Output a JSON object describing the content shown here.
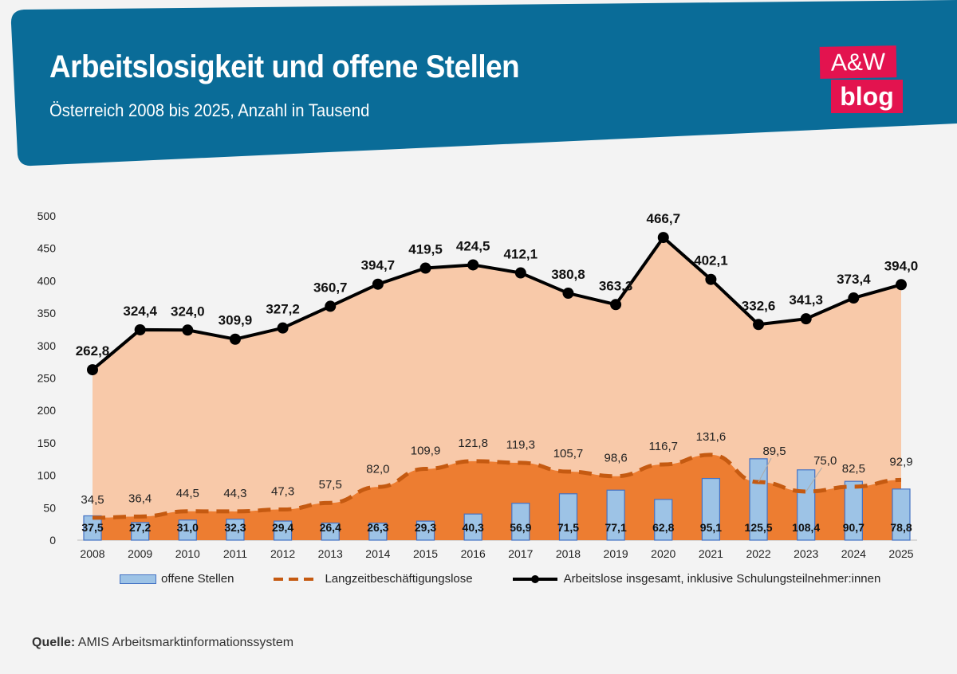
{
  "header": {
    "title": "Arbeitslosigkeit und offene Stellen",
    "subtitle": "Österreich 2008 bis 2025, Anzahl in Tausend",
    "logo_line1": "A&W",
    "logo_line2": "blog"
  },
  "source": {
    "label": "Quelle:",
    "text": " AMIS Arbeitsmarktinformationssystem"
  },
  "colors": {
    "header_bg": "#0a6c98",
    "logo": "#e3134f",
    "total_area": "#f8c9a9",
    "long_area": "#ed7d31",
    "long_line": "#c55a11",
    "bars": "#9dc3e6",
    "bar_border": "#4472c4",
    "total_line": "#000000"
  },
  "chart_data": {
    "type": "combo",
    "categories": [
      "2008",
      "2009",
      "2010",
      "2011",
      "2012",
      "2013",
      "2014",
      "2015",
      "2016",
      "2017",
      "2018",
      "2019",
      "2020",
      "2021",
      "2022",
      "2023",
      "2024",
      "2025"
    ],
    "ylim": [
      0,
      500
    ],
    "yticks": [
      "0",
      "50",
      "100",
      "150",
      "200",
      "250",
      "300",
      "350",
      "400",
      "450",
      "500"
    ],
    "grid": false,
    "legend_position": "bottom",
    "series": [
      {
        "name": "offene Stellen",
        "type": "bar",
        "values": [
          37.5,
          27.2,
          31.0,
          32.3,
          29.4,
          26.4,
          26.3,
          29.3,
          40.3,
          56.9,
          71.5,
          77.1,
          62.8,
          95.1,
          125.5,
          108.4,
          90.7,
          78.8
        ],
        "labels": [
          "37,5",
          "27,2",
          "31,0",
          "32,3",
          "29,4",
          "26,4",
          "26,3",
          "29,3",
          "40,3",
          "56,9",
          "71,5",
          "77,1",
          "62,8",
          "95,1",
          "125,5",
          "108,4",
          "90,7",
          "78,8"
        ]
      },
      {
        "name": "Langzeitbeschäftigungslose",
        "type": "area-dashed-line",
        "values": [
          34.5,
          36.4,
          44.5,
          44.3,
          47.3,
          57.5,
          82.0,
          109.9,
          121.8,
          119.3,
          105.7,
          98.6,
          116.7,
          131.6,
          89.5,
          75.0,
          82.5,
          92.9
        ],
        "labels": [
          "34,5",
          "36,4",
          "44,5",
          "44,3",
          "47,3",
          "57,5",
          "82,0",
          "109,9",
          "121,8",
          "119,3",
          "105,7",
          "98,6",
          "116,7",
          "131,6",
          "89,5",
          "75,0",
          "82,5",
          "92,9"
        ]
      },
      {
        "name": "Arbeitslose insgesamt, inklusive Schulungsteilnehmer:innen",
        "type": "area-line-markers",
        "values": [
          262.8,
          324.4,
          324.0,
          309.9,
          327.2,
          360.7,
          394.7,
          419.5,
          424.5,
          412.1,
          380.8,
          363.3,
          466.7,
          402.1,
          332.6,
          341.3,
          373.4,
          394.0
        ],
        "labels": [
          "262,8",
          "324,4",
          "324,0",
          "309,9",
          "327,2",
          "360,7",
          "394,7",
          "419,5",
          "424,5",
          "412,1",
          "380,8",
          "363,3",
          "466,7",
          "402,1",
          "332,6",
          "341,3",
          "373,4",
          "394,0"
        ]
      }
    ]
  }
}
